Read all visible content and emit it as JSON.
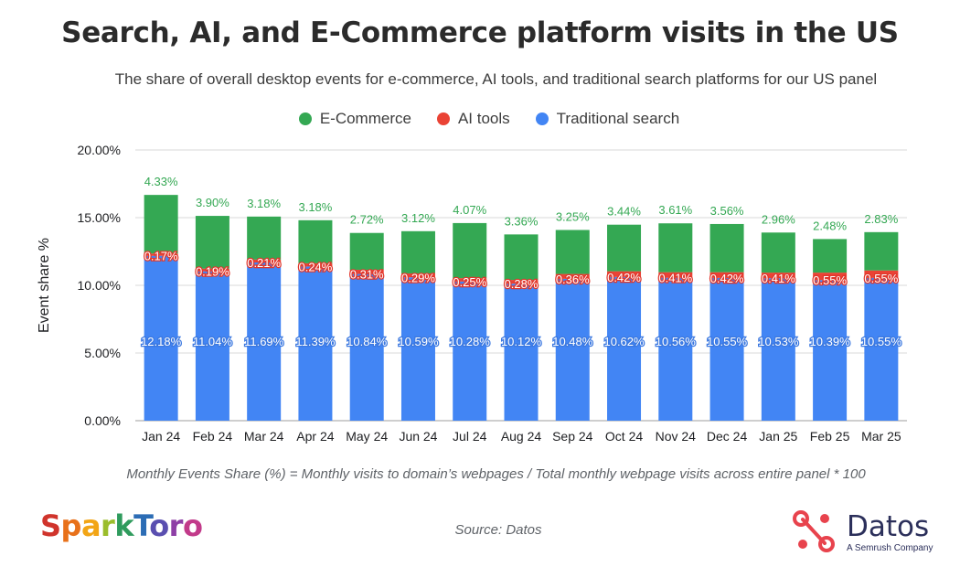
{
  "colors": {
    "ecommerce": "#34a853",
    "ai": "#ea4335",
    "search": "#4285f4",
    "grid": "#d9d9d9",
    "ecommerce_label": "#34a853"
  },
  "footnote": "Monthly Events Share (%) = Monthly visits to domain’s webpages / Total monthly webpage visits across entire panel * 100",
  "source": "Source: Datos",
  "logos": {
    "sparktoro": "SparkToro",
    "datos": "Datos",
    "datos_tagline": "A Semrush Company"
  },
  "chart_data": {
    "type": "bar",
    "stacked": true,
    "title": "Search, AI, and E-Commerce platform visits in the US",
    "subtitle": "The share of overall desktop events for e-commerce, AI tools, and traditional search platforms for our US panel",
    "xlabel": "",
    "ylabel": "Event share %",
    "ylim": [
      0,
      20
    ],
    "yticks": [
      "0.00%",
      "5.00%",
      "10.00%",
      "15.00%",
      "20.00%"
    ],
    "ytick_values": [
      0,
      5,
      10,
      15,
      20
    ],
    "grid": true,
    "legend_position": "top-center",
    "categories": [
      "Jan 24",
      "Feb 24",
      "Mar 24",
      "Apr 24",
      "May 24",
      "Jun 24",
      "Jul 24",
      "Aug 24",
      "Sep 24",
      "Oct 24",
      "Nov 24",
      "Dec 24",
      "Jan 25",
      "Feb 25",
      "Mar 25"
    ],
    "series": [
      {
        "name": "Traditional search",
        "key": "search",
        "values": [
          12.18,
          11.04,
          11.69,
          11.39,
          10.84,
          10.59,
          10.28,
          10.12,
          10.48,
          10.62,
          10.56,
          10.55,
          10.53,
          10.39,
          10.55
        ],
        "labels": [
          "12.18%",
          "11.04%",
          "11.69%",
          "11.39%",
          "10.84%",
          "10.59%",
          "10.28%",
          "10.12%",
          "10.48%",
          "10.62%",
          "10.56%",
          "10.55%",
          "10.53%",
          "10.39%",
          "10.55%"
        ]
      },
      {
        "name": "AI tools",
        "key": "ai",
        "values": [
          0.17,
          0.19,
          0.21,
          0.24,
          0.31,
          0.29,
          0.25,
          0.28,
          0.36,
          0.42,
          0.41,
          0.42,
          0.41,
          0.55,
          0.55
        ],
        "labels": [
          "0.17%",
          "0.19%",
          "0.21%",
          "0.24%",
          "0.31%",
          "0.29%",
          "0.25%",
          "0.28%",
          "0.36%",
          "0.42%",
          "0.41%",
          "0.42%",
          "0.41%",
          "0.55%",
          "0.55%"
        ]
      },
      {
        "name": "E-Commerce",
        "key": "ecommerce",
        "values": [
          4.33,
          3.9,
          3.18,
          3.18,
          2.72,
          3.12,
          4.07,
          3.36,
          3.25,
          3.44,
          3.61,
          3.56,
          2.96,
          2.48,
          2.83
        ],
        "labels": [
          "4.33%",
          "3.90%",
          "3.18%",
          "3.18%",
          "2.72%",
          "3.12%",
          "4.07%",
          "3.36%",
          "3.25%",
          "3.44%",
          "3.61%",
          "3.56%",
          "2.96%",
          "2.48%",
          "2.83%"
        ]
      }
    ],
    "legend": [
      "E-Commerce",
      "AI tools",
      "Traditional search"
    ]
  }
}
